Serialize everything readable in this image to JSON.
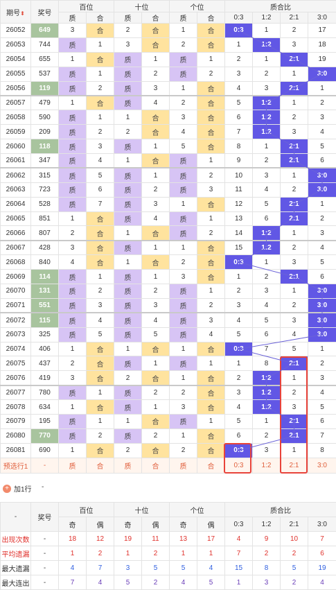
{
  "header": {
    "issue_label": "期号",
    "prize_label": "奖号",
    "groups": [
      "百位",
      "十位",
      "个位",
      "质合比"
    ],
    "sub": [
      "质",
      "合",
      "质",
      "合",
      "质",
      "合",
      "0:3",
      "1:2",
      "2:1",
      "3:0"
    ]
  },
  "rows": [
    {
      "issue": "26052",
      "prize": "649",
      "h": [
        "3",
        "合"
      ],
      "t": [
        "2",
        "合"
      ],
      "u": [
        "1",
        "合"
      ],
      "r": [
        "0:3",
        "1",
        "2",
        "17"
      ],
      "hl": 1,
      "sel": 0
    },
    {
      "issue": "26053",
      "prize": "744",
      "h": [
        "质",
        "1"
      ],
      "t": [
        "3",
        "合"
      ],
      "u": [
        "2",
        "合"
      ],
      "r": [
        "1",
        "1:2",
        "3",
        "18"
      ],
      "hl": 0,
      "sel": 1
    },
    {
      "issue": "26054",
      "prize": "655",
      "h": [
        "1",
        "合"
      ],
      "t": [
        "质",
        "1"
      ],
      "u": [
        "质",
        "1"
      ],
      "r": [
        "2",
        "1",
        "2:1",
        "19"
      ],
      "hl": 0,
      "sel": 2
    },
    {
      "issue": "26055",
      "prize": "537",
      "h": [
        "质",
        "1"
      ],
      "t": [
        "质",
        "2"
      ],
      "u": [
        "质",
        "2"
      ],
      "r": [
        "3",
        "2",
        "1",
        "3:0"
      ],
      "hl": 0,
      "sel": 3
    },
    {
      "issue": "26056",
      "prize": "119",
      "h": [
        "质",
        "2"
      ],
      "t": [
        "质",
        "3"
      ],
      "u": [
        "1",
        "合"
      ],
      "r": [
        "4",
        "3",
        "2:1",
        "1"
      ],
      "hl": 1,
      "sel": 2
    },
    {
      "issue": "26057",
      "prize": "479",
      "h": [
        "1",
        "合"
      ],
      "t": [
        "质",
        "4"
      ],
      "u": [
        "2",
        "合"
      ],
      "r": [
        "5",
        "1:2",
        "1",
        "2"
      ],
      "hl": 0,
      "sel": 1,
      "sec": 1
    },
    {
      "issue": "26058",
      "prize": "590",
      "h": [
        "质",
        "1"
      ],
      "t": [
        "1",
        "合"
      ],
      "u": [
        "3",
        "合"
      ],
      "r": [
        "6",
        "1:2",
        "2",
        "3"
      ],
      "hl": 0,
      "sel": 1
    },
    {
      "issue": "26059",
      "prize": "209",
      "h": [
        "质",
        "2"
      ],
      "t": [
        "2",
        "合"
      ],
      "u": [
        "4",
        "合"
      ],
      "r": [
        "7",
        "1:2",
        "3",
        "4"
      ],
      "hl": 0,
      "sel": 1
    },
    {
      "issue": "26060",
      "prize": "118",
      "h": [
        "质",
        "3"
      ],
      "t": [
        "质",
        "1"
      ],
      "u": [
        "5",
        "合"
      ],
      "r": [
        "8",
        "1",
        "2:1",
        "5"
      ],
      "hl": 1,
      "sel": 2
    },
    {
      "issue": "26061",
      "prize": "347",
      "h": [
        "质",
        "4"
      ],
      "t": [
        "1",
        "合"
      ],
      "u": [
        "质",
        "1"
      ],
      "r": [
        "9",
        "2",
        "2:1",
        "6"
      ],
      "hl": 0,
      "sel": 2
    },
    {
      "issue": "26062",
      "prize": "315",
      "h": [
        "质",
        "5"
      ],
      "t": [
        "质",
        "1"
      ],
      "u": [
        "质",
        "2"
      ],
      "r": [
        "10",
        "3",
        "1",
        "3:0"
      ],
      "hl": 0,
      "sel": 3,
      "sec": 1
    },
    {
      "issue": "26063",
      "prize": "723",
      "h": [
        "质",
        "6"
      ],
      "t": [
        "质",
        "2"
      ],
      "u": [
        "质",
        "3"
      ],
      "r": [
        "11",
        "4",
        "2",
        "3:0"
      ],
      "hl": 0,
      "sel": 3
    },
    {
      "issue": "26064",
      "prize": "528",
      "h": [
        "质",
        "7"
      ],
      "t": [
        "质",
        "3"
      ],
      "u": [
        "1",
        "合"
      ],
      "r": [
        "12",
        "5",
        "2:1",
        "1"
      ],
      "hl": 0,
      "sel": 2
    },
    {
      "issue": "26065",
      "prize": "851",
      "h": [
        "1",
        "合"
      ],
      "t": [
        "质",
        "4"
      ],
      "u": [
        "质",
        "1"
      ],
      "r": [
        "13",
        "6",
        "2:1",
        "2"
      ],
      "hl": 0,
      "sel": 2
    },
    {
      "issue": "26066",
      "prize": "807",
      "h": [
        "2",
        "合"
      ],
      "t": [
        "1",
        "合"
      ],
      "u": [
        "质",
        "2"
      ],
      "r": [
        "14",
        "1:2",
        "1",
        "3"
      ],
      "hl": 0,
      "sel": 1
    },
    {
      "issue": "26067",
      "prize": "428",
      "h": [
        "3",
        "合"
      ],
      "t": [
        "质",
        "1"
      ],
      "u": [
        "1",
        "合"
      ],
      "r": [
        "15",
        "1:2",
        "2",
        "4"
      ],
      "hl": 0,
      "sel": 1,
      "sec": 1
    },
    {
      "issue": "26068",
      "prize": "840",
      "h": [
        "4",
        "合"
      ],
      "t": [
        "1",
        "合"
      ],
      "u": [
        "2",
        "合"
      ],
      "r": [
        "0:3",
        "1",
        "3",
        "5"
      ],
      "hl": 0,
      "sel": 0
    },
    {
      "issue": "26069",
      "prize": "114",
      "h": [
        "质",
        "1"
      ],
      "t": [
        "质",
        "1"
      ],
      "u": [
        "3",
        "合"
      ],
      "r": [
        "1",
        "2",
        "2:1",
        "6"
      ],
      "hl": 1,
      "sel": 2
    },
    {
      "issue": "26070",
      "prize": "131",
      "h": [
        "质",
        "2"
      ],
      "t": [
        "质",
        "2"
      ],
      "u": [
        "质",
        "1"
      ],
      "r": [
        "2",
        "3",
        "1",
        "3:0"
      ],
      "hl": 1,
      "sel": 3
    },
    {
      "issue": "26071",
      "prize": "551",
      "h": [
        "质",
        "3"
      ],
      "t": [
        "质",
        "3"
      ],
      "u": [
        "质",
        "2"
      ],
      "r": [
        "3",
        "4",
        "2",
        "3:0"
      ],
      "hl": 1,
      "sel": 3
    },
    {
      "issue": "26072",
      "prize": "115",
      "h": [
        "质",
        "4"
      ],
      "t": [
        "质",
        "4"
      ],
      "u": [
        "质",
        "3"
      ],
      "r": [
        "4",
        "5",
        "3",
        "3:0"
      ],
      "hl": 1,
      "sel": 3,
      "sec": 1
    },
    {
      "issue": "26073",
      "prize": "325",
      "h": [
        "质",
        "5"
      ],
      "t": [
        "质",
        "5"
      ],
      "u": [
        "质",
        "4"
      ],
      "r": [
        "5",
        "6",
        "4",
        "3:0"
      ],
      "hl": 0,
      "sel": 3
    },
    {
      "issue": "26074",
      "prize": "406",
      "h": [
        "1",
        "合"
      ],
      "t": [
        "1",
        "合"
      ],
      "u": [
        "1",
        "合"
      ],
      "r": [
        "0:3",
        "7",
        "5",
        "1"
      ],
      "hl": 0,
      "sel": 0
    },
    {
      "issue": "26075",
      "prize": "437",
      "h": [
        "2",
        "合"
      ],
      "t": [
        "质",
        "1"
      ],
      "u": [
        "质",
        "1"
      ],
      "r": [
        "1",
        "8",
        "2:1",
        "2"
      ],
      "hl": 0,
      "sel": 2
    },
    {
      "issue": "26076",
      "prize": "419",
      "h": [
        "3",
        "合"
      ],
      "t": [
        "2",
        "合"
      ],
      "u": [
        "1",
        "合"
      ],
      "r": [
        "2",
        "1:2",
        "1",
        "3"
      ],
      "hl": 0,
      "sel": 1
    },
    {
      "issue": "26077",
      "prize": "780",
      "h": [
        "质",
        "1"
      ],
      "t": [
        "质",
        "2"
      ],
      "u": [
        "2",
        "合"
      ],
      "r": [
        "3",
        "1:2",
        "2",
        "4"
      ],
      "hl": 0,
      "sel": 1,
      "sec": 1
    },
    {
      "issue": "26078",
      "prize": "634",
      "h": [
        "1",
        "合"
      ],
      "t": [
        "质",
        "1"
      ],
      "u": [
        "3",
        "合"
      ],
      "r": [
        "4",
        "1:2",
        "3",
        "5"
      ],
      "hl": 0,
      "sel": 1
    },
    {
      "issue": "26079",
      "prize": "195",
      "h": [
        "质",
        "1"
      ],
      "t": [
        "1",
        "合"
      ],
      "u": [
        "质",
        "1"
      ],
      "r": [
        "5",
        "1",
        "2:1",
        "6"
      ],
      "hl": 0,
      "sel": 2
    },
    {
      "issue": "26080",
      "prize": "770",
      "h": [
        "质",
        "2"
      ],
      "t": [
        "质",
        "2"
      ],
      "u": [
        "1",
        "合"
      ],
      "r": [
        "6",
        "2",
        "2:1",
        "7"
      ],
      "hl": 1,
      "sel": 2
    },
    {
      "issue": "26081",
      "prize": "690",
      "h": [
        "1",
        "合"
      ],
      "t": [
        "2",
        "合"
      ],
      "u": [
        "2",
        "合"
      ],
      "r": [
        "0:3",
        "3",
        "1",
        "8"
      ],
      "hl": 0,
      "sel": 0
    }
  ],
  "predict": {
    "label": "预选行1",
    "dash": "-",
    "cells": [
      "质",
      "合",
      "质",
      "合",
      "质",
      "合",
      "0:3",
      "1:2",
      "2:1",
      "3:0"
    ]
  },
  "add_row": {
    "label": "加1行",
    "dash": "-",
    "icon": "plus-circle-icon"
  },
  "stats": {
    "dash": "-",
    "prize_label": "奖号",
    "groups": [
      "百位",
      "十位",
      "个位",
      "质合比"
    ],
    "sub": [
      "奇",
      "偶",
      "奇",
      "偶",
      "奇",
      "偶",
      "0:3",
      "1:2",
      "2:1",
      "3:0"
    ],
    "rows": [
      {
        "label": "出现次数",
        "dash": "-",
        "vals": [
          "18",
          "12",
          "19",
          "11",
          "13",
          "17",
          "4",
          "9",
          "10",
          "7"
        ]
      },
      {
        "label": "平均遗漏",
        "dash": "-",
        "vals": [
          "1",
          "2",
          "1",
          "2",
          "1",
          "1",
          "7",
          "2",
          "2",
          "6"
        ]
      },
      {
        "label": "最大遗漏",
        "dash": "-",
        "vals": [
          "4",
          "7",
          "3",
          "5",
          "5",
          "4",
          "15",
          "8",
          "5",
          "19"
        ]
      },
      {
        "label": "最大连出",
        "dash": "-",
        "vals": [
          "7",
          "4",
          "5",
          "2",
          "4",
          "5",
          "1",
          "3",
          "2",
          "4"
        ]
      }
    ]
  },
  "colors": {
    "purple": "#d7c4f5",
    "yellow": "#ffe39e",
    "green": "#a8c49e",
    "blue": "#6157e5",
    "red": "#e8433a"
  }
}
